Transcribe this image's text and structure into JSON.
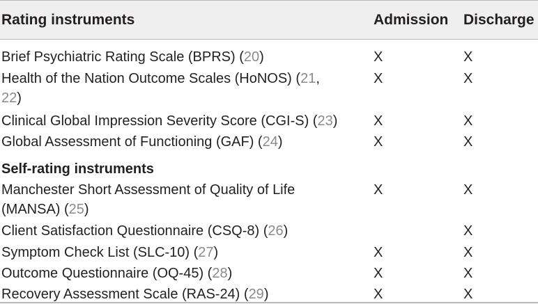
{
  "table": {
    "headers": {
      "instrument": "Rating instruments",
      "admission": "Admission",
      "discharge": "Discharge"
    },
    "group1": [
      {
        "line1": "Brief Psychiatric Rating Scale (BPRS) (",
        "ref1": "20",
        "line1_end": ")",
        "line2": "",
        "ref2": "",
        "line2_end": "",
        "admission": "X",
        "discharge": "X"
      },
      {
        "line1": "Health of the Nation Outcome Scales (HoNOS) (",
        "ref1": "21",
        "line1_end": ",",
        "line2": "",
        "ref2": "22",
        "line2_end": ")",
        "admission": "X",
        "discharge": "X"
      },
      {
        "line1": "Clinical Global Impression Severity Score (CGI-S) (",
        "ref1": "23",
        "line1_end": ")",
        "line2": "",
        "ref2": "",
        "line2_end": "",
        "admission": "X",
        "discharge": "X"
      },
      {
        "line1": "Global Assessment of Functioning (GAF) (",
        "ref1": "24",
        "line1_end": ")",
        "line2": "",
        "ref2": "",
        "line2_end": "",
        "admission": "X",
        "discharge": "X"
      }
    ],
    "section2_title": "Self-rating instruments",
    "group2": [
      {
        "line1": "Manchester Short Assessment of Quality of Life",
        "ref1": "",
        "line1_end": "",
        "line2": "(MANSA) (",
        "ref2": "25",
        "line2_end": ")",
        "admission": "X",
        "discharge": "X"
      },
      {
        "line1": "Client Satisfaction Questionnaire (CSQ-8) (",
        "ref1": "26",
        "line1_end": ")",
        "line2": "",
        "ref2": "",
        "line2_end": "",
        "admission": "",
        "discharge": "X"
      },
      {
        "line1": "Symptom Check List (SLC-10) (",
        "ref1": "27",
        "line1_end": ")",
        "line2": "",
        "ref2": "",
        "line2_end": "",
        "admission": "X",
        "discharge": "X"
      },
      {
        "line1": "Outcome Questionnaire (OQ-45) (",
        "ref1": "28",
        "line1_end": ")",
        "line2": "",
        "ref2": "",
        "line2_end": "",
        "admission": "X",
        "discharge": "X"
      },
      {
        "line1": "Recovery Assessment Scale (RAS-24) (",
        "ref1": "29",
        "line1_end": ")",
        "line2": "",
        "ref2": "",
        "line2_end": "",
        "admission": "X",
        "discharge": "X"
      }
    ]
  }
}
